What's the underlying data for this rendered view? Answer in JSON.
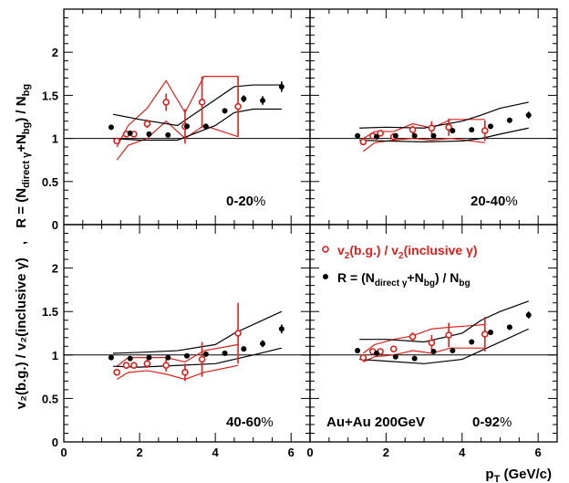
{
  "colors": {
    "red": "#e0201c",
    "black": "#000000"
  },
  "axes": {
    "xlabel_main": "p",
    "xlabel_sub": "T",
    "xlabel_unit": " (GeV/c)",
    "ylabel_lower": "v₂(b.g.) / v₂(inclusive γ)",
    "ylabel_upper": "R = (N",
    "ylabel_upper_sub1": "direct γ",
    "ylabel_upper_mid": "+N",
    "ylabel_upper_sub2": "bg",
    "ylabel_upper_end": ") / N",
    "ylabel_upper_sub3": "bg",
    "ylabel_sep": ","
  },
  "legend": {
    "red_main": "v",
    "red_sub1": "2",
    "red_mid": "(b.g.) / v",
    "red_sub2": "2",
    "red_end": "(inclusive γ)",
    "black_main": "R = (N",
    "black_sub1": "direct γ",
    "black_mid": "+N",
    "black_sub2": "bg",
    "black_end": ") / N",
    "black_sub3": "bg"
  },
  "system_label": "Au+Au 200GeV",
  "chart_data": [
    {
      "type": "scatter",
      "panel": "top-left",
      "label_main": "0-20",
      "label_pct": "%",
      "xlim": [
        0,
        6.5
      ],
      "ylim": [
        0,
        2.5
      ],
      "xticks": [
        "",
        "",
        "",
        ""
      ],
      "yticks": [
        "0",
        "0.5",
        "1",
        "1.5",
        "2"
      ],
      "series": [
        {
          "marker": "open-circle",
          "color": "red",
          "x": [
            1.4,
            1.65,
            1.85,
            2.2,
            2.7,
            3.2,
            3.65,
            4.6
          ],
          "y": [
            0.97,
            1.05,
            1.05,
            1.17,
            1.42,
            1.14,
            1.42,
            1.37
          ],
          "err": [
            0.03,
            0.03,
            0.03,
            0.05,
            0.1,
            0.2,
            0.3,
            0.35
          ]
        },
        {
          "marker": "filled-circle",
          "color": "black",
          "x": [
            1.25,
            1.75,
            2.25,
            2.75,
            3.25,
            3.75,
            4.25,
            4.75,
            5.25,
            5.75
          ],
          "y": [
            1.13,
            1.06,
            1.05,
            1.04,
            1.14,
            1.14,
            1.32,
            1.46,
            1.44,
            1.6
          ],
          "err": [
            0.01,
            0.01,
            0.01,
            0.01,
            0.02,
            0.02,
            0.03,
            0.04,
            0.05,
            0.06
          ]
        }
      ],
      "bands": [
        {
          "color": "red",
          "x": [
            1.4,
            1.7,
            2.2,
            2.7,
            3.2,
            3.7,
            4.6
          ],
          "upper": [
            0.9,
            1.15,
            1.35,
            1.67,
            1.3,
            1.72,
            1.72
          ],
          "lower": [
            0.75,
            0.92,
            1.0,
            1.2,
            1.0,
            1.15,
            1.02
          ]
        },
        {
          "color": "black",
          "x": [
            1.3,
            2.0,
            3.0,
            4.0,
            4.5,
            5.0,
            5.75
          ],
          "upper": [
            1.28,
            1.22,
            1.15,
            1.45,
            1.6,
            1.62,
            1.62
          ],
          "lower": [
            1.0,
            0.98,
            0.98,
            1.15,
            1.3,
            1.34,
            1.34
          ]
        }
      ]
    },
    {
      "type": "scatter",
      "panel": "top-right",
      "label_main": "20-40",
      "label_pct": "%",
      "xlim": [
        0,
        6.5
      ],
      "ylim": [
        0,
        2.5
      ],
      "xticks": [
        "",
        "",
        "",
        ""
      ],
      "yticks": [
        "",
        "",
        "",
        "",
        ""
      ],
      "series": [
        {
          "marker": "open-circle",
          "color": "red",
          "x": [
            1.4,
            1.65,
            1.85,
            2.2,
            2.7,
            3.2,
            3.65,
            4.6
          ],
          "y": [
            0.96,
            1.03,
            1.06,
            1.02,
            1.1,
            1.12,
            1.13,
            1.09
          ],
          "err": [
            0.02,
            0.02,
            0.02,
            0.03,
            0.05,
            0.08,
            0.1,
            0.12
          ]
        },
        {
          "marker": "filled-circle",
          "color": "black",
          "x": [
            1.25,
            1.75,
            2.25,
            2.75,
            3.25,
            3.75,
            4.25,
            4.75,
            5.25,
            5.75
          ],
          "y": [
            1.03,
            1.02,
            1.03,
            1.03,
            1.03,
            1.09,
            1.1,
            1.14,
            1.21,
            1.27
          ],
          "err": [
            0.01,
            0.01,
            0.01,
            0.01,
            0.01,
            0.02,
            0.02,
            0.03,
            0.03,
            0.04
          ]
        }
      ],
      "bands": [
        {
          "color": "red",
          "x": [
            1.4,
            1.7,
            2.2,
            2.7,
            3.2,
            3.7,
            4.6
          ],
          "upper": [
            1.0,
            1.08,
            1.08,
            1.17,
            1.12,
            1.22,
            1.22
          ],
          "lower": [
            0.85,
            0.95,
            0.98,
            1.0,
            0.98,
            1.0,
            0.95
          ]
        },
        {
          "color": "black",
          "x": [
            1.3,
            2.0,
            3.0,
            4.0,
            4.5,
            5.0,
            5.75
          ],
          "upper": [
            1.12,
            1.13,
            1.12,
            1.2,
            1.27,
            1.35,
            1.42
          ],
          "lower": [
            0.98,
            0.97,
            0.96,
            0.97,
            1.0,
            1.05,
            1.12
          ]
        }
      ]
    },
    {
      "type": "scatter",
      "panel": "bottom-left",
      "label_main": "40-60",
      "label_pct": "%",
      "xlim": [
        0,
        6.5
      ],
      "ylim": [
        0,
        2.5
      ],
      "xticks": [
        "0",
        "2",
        "4",
        "6"
      ],
      "yticks": [
        "0",
        "0.5",
        "1",
        "1.5",
        "2"
      ],
      "series": [
        {
          "marker": "open-circle",
          "color": "red",
          "x": [
            1.4,
            1.65,
            1.85,
            2.2,
            2.7,
            3.2,
            3.65,
            4.6
          ],
          "y": [
            0.8,
            0.88,
            0.88,
            0.9,
            0.88,
            0.8,
            0.95,
            1.25
          ],
          "err": [
            0.03,
            0.04,
            0.04,
            0.05,
            0.07,
            0.1,
            0.2,
            0.35
          ]
        },
        {
          "marker": "filled-circle",
          "color": "black",
          "x": [
            1.25,
            1.75,
            2.25,
            2.75,
            3.25,
            3.75,
            4.25,
            4.75,
            5.25,
            5.75
          ],
          "y": [
            0.97,
            0.96,
            0.97,
            0.97,
            0.99,
            1.01,
            1.02,
            1.07,
            1.13,
            1.3
          ],
          "err": [
            0.01,
            0.01,
            0.01,
            0.01,
            0.01,
            0.02,
            0.02,
            0.03,
            0.04,
            0.05
          ]
        }
      ],
      "bands": [
        {
          "color": "red",
          "x": [
            1.4,
            1.7,
            2.2,
            2.7,
            3.2,
            3.7,
            4.6
          ],
          "upper": [
            0.87,
            0.97,
            0.97,
            0.97,
            0.92,
            1.05,
            1.12
          ],
          "lower": [
            0.72,
            0.8,
            0.82,
            0.78,
            0.72,
            0.8,
            0.88
          ]
        },
        {
          "color": "black",
          "x": [
            1.3,
            2.0,
            3.0,
            4.0,
            4.5,
            5.0,
            5.75
          ],
          "upper": [
            1.02,
            1.03,
            1.05,
            1.12,
            1.25,
            1.35,
            1.5
          ],
          "lower": [
            0.87,
            0.86,
            0.88,
            0.9,
            0.95,
            1.0,
            1.08
          ]
        }
      ]
    },
    {
      "type": "scatter",
      "panel": "bottom-right",
      "label_main": "0-92",
      "label_pct": "%",
      "xlim": [
        0,
        6.5
      ],
      "ylim": [
        0,
        2.5
      ],
      "xticks": [
        "0",
        "2",
        "4",
        "6"
      ],
      "yticks": [
        "",
        "",
        "",
        "",
        ""
      ],
      "series": [
        {
          "marker": "open-circle",
          "color": "red",
          "x": [
            1.4,
            1.65,
            1.85,
            2.2,
            2.7,
            3.2,
            3.65,
            4.6
          ],
          "y": [
            0.97,
            1.04,
            1.04,
            1.07,
            1.21,
            1.14,
            1.23,
            1.24
          ],
          "err": [
            0.02,
            0.02,
            0.02,
            0.03,
            0.05,
            0.09,
            0.14,
            0.2
          ]
        },
        {
          "marker": "filled-circle",
          "color": "black",
          "x": [
            1.25,
            1.75,
            2.25,
            2.75,
            3.25,
            3.75,
            4.25,
            4.75,
            5.25,
            5.75
          ],
          "y": [
            1.05,
            1.02,
            0.98,
            0.96,
            1.04,
            1.05,
            1.15,
            1.26,
            1.32,
            1.46
          ],
          "err": [
            0.01,
            0.01,
            0.01,
            0.01,
            0.01,
            0.02,
            0.02,
            0.03,
            0.03,
            0.04
          ]
        }
      ],
      "bands": [
        {
          "color": "red",
          "x": [
            1.4,
            1.7,
            2.2,
            2.7,
            3.2,
            3.7,
            4.6
          ],
          "upper": [
            1.02,
            1.12,
            1.18,
            1.22,
            1.3,
            1.32,
            1.35
          ],
          "lower": [
            0.92,
            0.98,
            1.0,
            1.05,
            1.02,
            1.08,
            1.08
          ]
        },
        {
          "color": "black",
          "x": [
            1.3,
            2.0,
            3.0,
            4.0,
            4.5,
            5.0,
            5.75
          ],
          "upper": [
            1.18,
            1.18,
            1.15,
            1.25,
            1.4,
            1.5,
            1.62
          ],
          "lower": [
            0.95,
            0.93,
            0.9,
            0.95,
            1.05,
            1.15,
            1.3
          ]
        }
      ]
    }
  ]
}
